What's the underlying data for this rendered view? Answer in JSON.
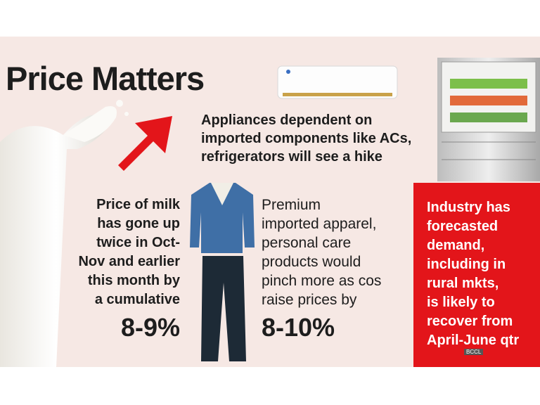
{
  "header": {
    "title": "Price Matters"
  },
  "appliances": {
    "lines": [
      "Appliances dependent on",
      "imported components like ACs,",
      "refrigerators will see a hike"
    ]
  },
  "milk": {
    "lines": [
      "Price of milk",
      "has gone up",
      "twice in Oct-",
      "Nov and earlier",
      "this month by",
      "a cumulative"
    ],
    "figure": "8-9%"
  },
  "apparel": {
    "lines": [
      "Premium",
      "imported apparel,",
      "personal care",
      "products would",
      "pinch more as cos",
      "raise prices by"
    ],
    "figure": "8-10%"
  },
  "industry": {
    "lines": [
      "Industry has",
      "forecasted",
      "demand,",
      "including in",
      "rural mkts,",
      "is likely to",
      "recover from",
      "April-June qtr"
    ]
  },
  "watermark": "BCCL"
}
